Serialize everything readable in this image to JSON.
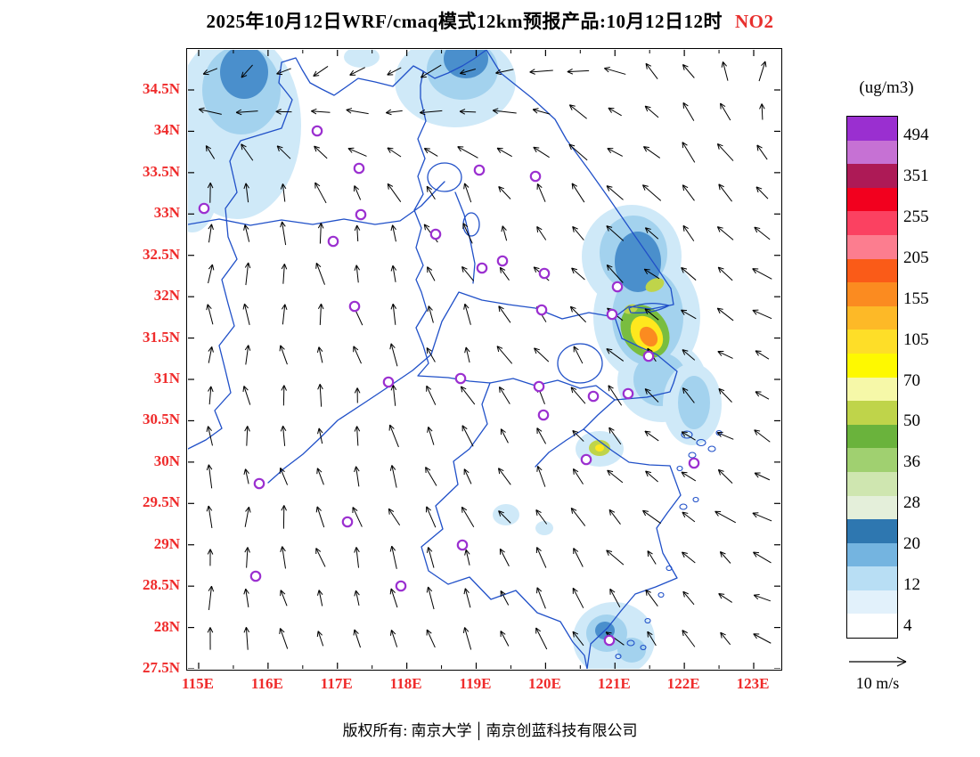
{
  "title": {
    "main": "2025年10月12日WRF/cmaq模式12km预报产品:10月12日12时",
    "pollutant": "NO2",
    "pollutant_color": "#e8302e"
  },
  "axes": {
    "label_color": "#ef2b2b",
    "lat_labels": [
      "34.5N",
      "34N",
      "33.5N",
      "33N",
      "32.5N",
      "32N",
      "31.5N",
      "31N",
      "30.5N",
      "30N",
      "29.5N",
      "29N",
      "28.5N",
      "28N",
      "27.5N"
    ],
    "lon_labels": [
      "115E",
      "116E",
      "117E",
      "118E",
      "119E",
      "120E",
      "121E",
      "122E",
      "123E"
    ]
  },
  "legend": {
    "unit": "(ug/m3)",
    "labels": [
      "494",
      "351",
      "255",
      "205",
      "155",
      "105",
      "70",
      "50",
      "36",
      "28",
      "20",
      "12",
      "4"
    ],
    "colors": [
      "#9a2fd0",
      "#c671d4",
      "#ad1a56",
      "#f2001e",
      "#fb4161",
      "#fc7d8f",
      "#fa5b18",
      "#fb8b20",
      "#fdb927",
      "#fede28",
      "#fef900",
      "#f6f8a8",
      "#bfd44a",
      "#6ab33c",
      "#a0d070",
      "#cfe6b0",
      "#e4efda",
      "#2e77b0",
      "#74b4e0",
      "#b8def4",
      "#e2f1fb",
      "#ffffff"
    ]
  },
  "wind_ref": {
    "label": "10 m/s"
  },
  "footer": {
    "owner": "版权所有: 南京大学",
    "divider": "│",
    "company": "南京创蓝科技有限公司"
  },
  "map": {
    "line_color": "#2050c8",
    "marker_color": "#9b30d0",
    "arrow_color": "#000000",
    "patch_colors": {
      "L": "#cfe9f8",
      "M": "#a3d2ee",
      "K": "#4a8fcc",
      "G": "#79bd3f",
      "YG": "#bfd44a",
      "Y": "#fee81e",
      "O": "#fb8b20"
    }
  }
}
